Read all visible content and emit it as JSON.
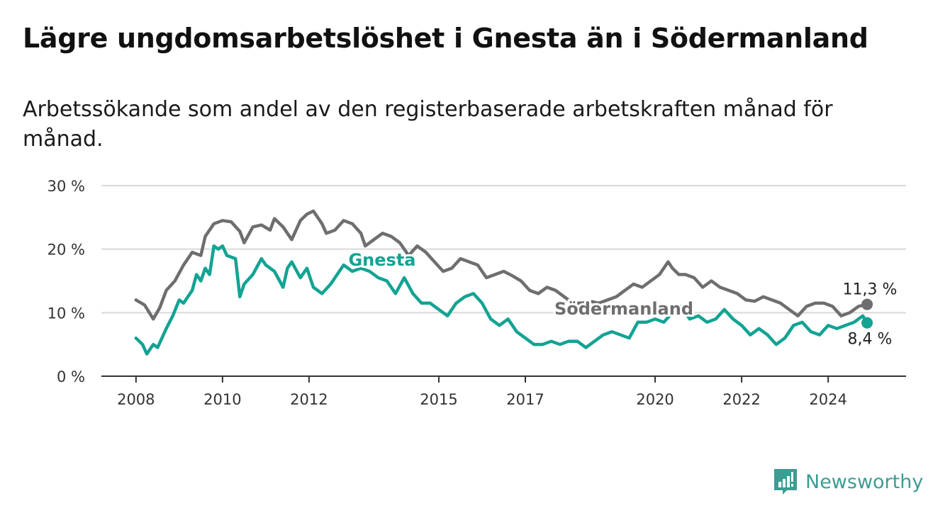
{
  "title": "Lägre ungdomsarbetslöshet i Gnesta än i Södermanland",
  "subtitle": "Arbetssökande som andel av den registerbaserade arbetskraften månad för månad.",
  "brand": "Newsworthy",
  "colors": {
    "gnesta": "#12a393",
    "sodermanland": "#6e6e70",
    "grid": "#d9d9d9",
    "axis": "#333333",
    "brand": "#3d9c93"
  },
  "chart_data": {
    "type": "line",
    "title": "Lägre ungdomsarbetslöshet i Gnesta än i Södermanland",
    "xlabel": "",
    "ylabel": "",
    "xlim": [
      2007.2,
      2025.8
    ],
    "ylim": [
      0,
      30
    ],
    "y_ticks": [
      0,
      10,
      20,
      30
    ],
    "y_tick_labels": [
      "0 %",
      "10 %",
      "20 %",
      "30 %"
    ],
    "x_ticks": [
      2008,
      2010,
      2012,
      2015,
      2017,
      2020,
      2022,
      2024
    ],
    "x_tick_labels": [
      "2008",
      "2010",
      "2012",
      "2015",
      "2017",
      "2020",
      "2022",
      "2024"
    ],
    "grid": "horizontal",
    "series": [
      {
        "name": "Södermanland",
        "end_label": "11,3 %",
        "x": [
          2008.0,
          2008.2,
          2008.4,
          2008.55,
          2008.7,
          2008.9,
          2009.1,
          2009.3,
          2009.5,
          2009.6,
          2009.8,
          2010.0,
          2010.2,
          2010.4,
          2010.5,
          2010.7,
          2010.9,
          2011.1,
          2011.2,
          2011.4,
          2011.6,
          2011.8,
          2011.95,
          2012.1,
          2012.3,
          2012.4,
          2012.6,
          2012.8,
          2013.0,
          2013.2,
          2013.3,
          2013.5,
          2013.7,
          2013.9,
          2014.1,
          2014.3,
          2014.5,
          2014.7,
          2014.9,
          2015.1,
          2015.3,
          2015.5,
          2015.7,
          2015.9,
          2016.1,
          2016.3,
          2016.5,
          2016.7,
          2016.9,
          2017.1,
          2017.3,
          2017.5,
          2017.7,
          2017.9,
          2018.1,
          2018.3,
          2018.5,
          2018.7,
          2018.9,
          2019.1,
          2019.3,
          2019.5,
          2019.7,
          2019.9,
          2020.1,
          2020.3,
          2020.4,
          2020.55,
          2020.7,
          2020.9,
          2021.1,
          2021.3,
          2021.5,
          2021.7,
          2021.9,
          2022.1,
          2022.3,
          2022.5,
          2022.7,
          2022.9,
          2023.1,
          2023.3,
          2023.5,
          2023.7,
          2023.9,
          2024.1,
          2024.3,
          2024.5,
          2024.7,
          2024.9
        ],
        "values": [
          12.0,
          11.2,
          9.0,
          10.8,
          13.5,
          15.0,
          17.5,
          19.5,
          19.0,
          22.0,
          24.0,
          24.5,
          24.3,
          22.8,
          21.0,
          23.5,
          23.8,
          23.0,
          24.8,
          23.5,
          21.5,
          24.5,
          25.5,
          26.0,
          24.0,
          22.5,
          23.0,
          24.5,
          24.0,
          22.5,
          20.5,
          21.5,
          22.5,
          22.0,
          21.0,
          19.0,
          20.5,
          19.5,
          18.0,
          16.5,
          17.0,
          18.5,
          18.0,
          17.5,
          15.5,
          16.0,
          16.5,
          15.8,
          15.0,
          13.5,
          13.0,
          14.0,
          13.5,
          12.5,
          11.5,
          11.5,
          11.8,
          11.5,
          12.0,
          12.5,
          13.5,
          14.5,
          14.0,
          15.0,
          16.0,
          18.0,
          17.0,
          16.0,
          16.0,
          15.5,
          14.0,
          15.0,
          14.0,
          13.5,
          13.0,
          12.0,
          11.8,
          12.5,
          12.0,
          11.5,
          10.5,
          9.5,
          11.0,
          11.5,
          11.5,
          11.0,
          9.5,
          10.0,
          11.0,
          11.3
        ]
      },
      {
        "name": "Gnesta",
        "end_label": "8,4 %",
        "x": [
          2008.0,
          2008.15,
          2008.25,
          2008.4,
          2008.5,
          2008.7,
          2008.85,
          2009.0,
          2009.1,
          2009.3,
          2009.4,
          2009.5,
          2009.6,
          2009.7,
          2009.8,
          2009.9,
          2010.0,
          2010.1,
          2010.3,
          2010.4,
          2010.5,
          2010.7,
          2010.9,
          2011.0,
          2011.2,
          2011.4,
          2011.5,
          2011.6,
          2011.8,
          2011.95,
          2012.1,
          2012.3,
          2012.5,
          2012.6,
          2012.8,
          2013.0,
          2013.2,
          2013.4,
          2013.6,
          2013.8,
          2014.0,
          2014.2,
          2014.4,
          2014.6,
          2014.8,
          2015.0,
          2015.2,
          2015.4,
          2015.6,
          2015.8,
          2016.0,
          2016.2,
          2016.4,
          2016.6,
          2016.8,
          2017.0,
          2017.2,
          2017.4,
          2017.6,
          2017.8,
          2018.0,
          2018.2,
          2018.4,
          2018.6,
          2018.8,
          2019.0,
          2019.2,
          2019.4,
          2019.6,
          2019.8,
          2020.0,
          2020.2,
          2020.4,
          2020.6,
          2020.8,
          2021.0,
          2021.2,
          2021.4,
          2021.6,
          2021.8,
          2022.0,
          2022.2,
          2022.4,
          2022.6,
          2022.8,
          2023.0,
          2023.2,
          2023.4,
          2023.6,
          2023.8,
          2024.0,
          2024.2,
          2024.4,
          2024.6,
          2024.8,
          2024.9
        ],
        "values": [
          6.0,
          5.0,
          3.5,
          5.0,
          4.5,
          7.5,
          9.5,
          12.0,
          11.5,
          13.5,
          16.0,
          15.0,
          17.0,
          16.0,
          20.5,
          20.0,
          20.5,
          19.0,
          18.5,
          12.5,
          14.5,
          16.0,
          18.5,
          17.5,
          16.5,
          14.0,
          17.0,
          18.0,
          15.5,
          17.0,
          14.0,
          13.0,
          14.5,
          15.5,
          17.5,
          16.5,
          17.0,
          16.5,
          15.5,
          15.0,
          13.0,
          15.5,
          13.0,
          11.5,
          11.5,
          10.5,
          9.5,
          11.5,
          12.5,
          13.0,
          11.5,
          9.0,
          8.0,
          9.0,
          7.0,
          6.0,
          5.0,
          5.0,
          5.5,
          5.0,
          5.5,
          5.5,
          4.5,
          5.5,
          6.5,
          7.0,
          6.5,
          6.0,
          8.5,
          8.5,
          9.0,
          8.5,
          10.0,
          11.0,
          9.0,
          9.5,
          8.5,
          9.0,
          10.5,
          9.0,
          8.0,
          6.5,
          7.5,
          6.5,
          5.0,
          6.0,
          8.0,
          8.5,
          7.0,
          6.5,
          8.0,
          7.5,
          8.0,
          8.5,
          9.5,
          8.4
        ]
      }
    ]
  }
}
